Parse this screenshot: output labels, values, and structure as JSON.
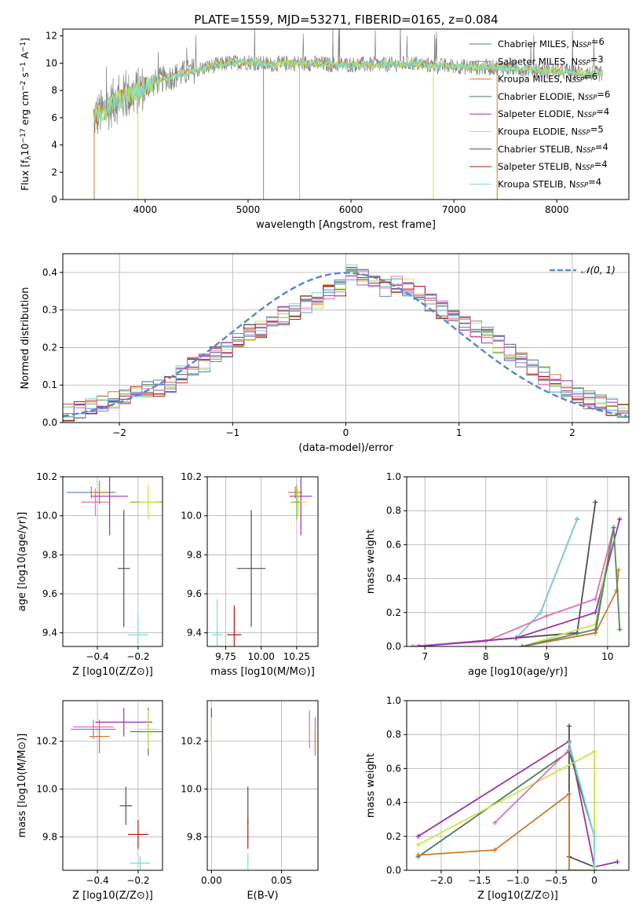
{
  "figure_title": "PLATE=1559, MJD=53271, FIBERID=0165, z=0.084",
  "colors": {
    "chabrier_miles": "#5a8a6a",
    "salpeter_miles": "#8a8a8a",
    "kroupa_miles": "#d07a30",
    "chabrier_elodie": "#4a7a5a",
    "salpeter_elodie": "#9b30b0",
    "kroupa_elodie": "#c8e84a",
    "chabrier_stelib": "#505050",
    "salpeter_stelib": "#b01818",
    "kroupa_stelib": "#7ad8d8",
    "blue": "#6a86d8",
    "pink": "#e070b8",
    "green_bright": "#70c030",
    "gaussian": "#5a8ad0"
  },
  "chart_data": [
    {
      "id": "spectrum",
      "type": "line",
      "title": "PLATE=1559, MJD=53271, FIBERID=0165, z=0.084",
      "xlabel": "wavelength [Angstrom, rest frame]",
      "ylabel": "Flux [f_λ10^-17 erg cm^-2 s^-1 A^-1]",
      "xlim": [
        3200,
        8700
      ],
      "ylim": [
        0,
        12.5
      ],
      "xticks": [
        4000,
        5000,
        6000,
        7000,
        8000
      ],
      "yticks": [
        0,
        2,
        4,
        6,
        8,
        10,
        12
      ],
      "legend_position": "top-right",
      "legend": [
        {
          "name": "Chabrier MILES",
          "n": "6",
          "color": "chabrier_miles"
        },
        {
          "name": "Salpeter MILES",
          "n": "3",
          "color": "salpeter_miles"
        },
        {
          "name": "Kroupa MILES",
          "n": "6",
          "color": "kroupa_miles"
        },
        {
          "name": "Chabrier ELODIE",
          "n": "6",
          "color": "chabrier_elodie"
        },
        {
          "name": "Salpeter ELODIE",
          "n": "4",
          "color": "salpeter_elodie"
        },
        {
          "name": "Kroupa ELODIE",
          "n": "5",
          "color": "kroupa_elodie"
        },
        {
          "name": "Chabrier STELIB",
          "n": "4",
          "color": "chabrier_stelib"
        },
        {
          "name": "Salpeter STELIB",
          "n": "4",
          "color": "salpeter_stelib"
        },
        {
          "name": "Kroupa STELIB",
          "n": "4",
          "color": "kroupa_stelib"
        }
      ],
      "continuum": [
        [
          3500,
          6.0
        ],
        [
          3600,
          6.5
        ],
        [
          3700,
          7.2
        ],
        [
          3800,
          7.5
        ],
        [
          3900,
          7.8
        ],
        [
          4000,
          8.3
        ],
        [
          4200,
          8.9
        ],
        [
          4400,
          9.3
        ],
        [
          4600,
          9.7
        ],
        [
          4800,
          10.0
        ],
        [
          5000,
          10.1
        ],
        [
          5200,
          9.9
        ],
        [
          5400,
          10.0
        ],
        [
          5600,
          10.0
        ],
        [
          5800,
          9.9
        ],
        [
          6000,
          9.9
        ],
        [
          6200,
          9.9
        ],
        [
          6400,
          9.9
        ],
        [
          6600,
          10.0
        ],
        [
          6800,
          9.8
        ],
        [
          7000,
          9.8
        ],
        [
          7200,
          9.7
        ],
        [
          7400,
          9.7
        ],
        [
          7600,
          9.6
        ],
        [
          7800,
          9.5
        ],
        [
          8000,
          9.4
        ],
        [
          8200,
          9.3
        ],
        [
          8450,
          9.2
        ]
      ]
    },
    {
      "id": "residuals",
      "type": "histogram",
      "xlabel": "(data-model)/error",
      "ylabel": "Normed distribution",
      "xlim": [
        -2.5,
        2.5
      ],
      "ylim": [
        0,
        0.45
      ],
      "xticks": [
        -2,
        -1,
        0,
        1,
        2
      ],
      "yticks": [
        0.0,
        0.1,
        0.2,
        0.3,
        0.4
      ],
      "legend": "N(0,1)",
      "legend_position": "top-right",
      "bins": [
        -2.5,
        -2.4,
        -2.3,
        -2.2,
        -2.1,
        -2.0,
        -1.9,
        -1.8,
        -1.7,
        -1.6,
        -1.5,
        -1.4,
        -1.3,
        -1.2,
        -1.1,
        -1.0,
        -0.9,
        -0.8,
        -0.7,
        -0.6,
        -0.5,
        -0.4,
        -0.3,
        -0.2,
        -0.1,
        0.0,
        0.1,
        0.2,
        0.3,
        0.4,
        0.5,
        0.6,
        0.7,
        0.8,
        0.9,
        1.0,
        1.1,
        1.2,
        1.3,
        1.4,
        1.5,
        1.6,
        1.7,
        1.8,
        1.9,
        2.0,
        2.1,
        2.2,
        2.3,
        2.4,
        2.5
      ],
      "hist_mean": [
        0.025,
        0.035,
        0.045,
        0.05,
        0.06,
        0.065,
        0.075,
        0.09,
        0.095,
        0.105,
        0.13,
        0.15,
        0.16,
        0.18,
        0.19,
        0.22,
        0.24,
        0.245,
        0.27,
        0.285,
        0.3,
        0.315,
        0.33,
        0.345,
        0.36,
        0.4,
        0.39,
        0.375,
        0.36,
        0.37,
        0.36,
        0.34,
        0.32,
        0.3,
        0.28,
        0.27,
        0.25,
        0.23,
        0.21,
        0.19,
        0.17,
        0.15,
        0.125,
        0.105,
        0.09,
        0.075,
        0.06,
        0.05,
        0.04,
        0.035
      ]
    },
    {
      "id": "age_vs_Z",
      "type": "scatter",
      "xlabel": "Z [log10(Z/Z⊙)]",
      "ylabel": "age  [log10(age/yr)]",
      "xlim": [
        -0.57,
        -0.08
      ],
      "ylim": [
        9.33,
        10.2
      ],
      "xticks": [
        -0.4,
        -0.2
      ],
      "yticks": [
        9.4,
        9.6,
        9.8,
        10.0,
        10.2
      ],
      "points": [
        {
          "x": -0.43,
          "y": 10.12,
          "xerr": 0.12,
          "yerr": 0.03,
          "color": "blue"
        },
        {
          "x": -0.39,
          "y": 10.12,
          "xerr": 0.05,
          "yerr": 0.06,
          "color": "kroupa_miles"
        },
        {
          "x": -0.41,
          "y": 10.07,
          "xerr": 0.07,
          "yerr": 0.07,
          "color": "pink"
        },
        {
          "x": -0.34,
          "y": 10.1,
          "xerr": 0.09,
          "yerr": 0.2,
          "color": "salpeter_elodie"
        },
        {
          "x": -0.15,
          "y": 10.07,
          "xerr": 0.09,
          "yerr": 0.02,
          "color": "green_bright"
        },
        {
          "x": -0.15,
          "y": 10.07,
          "xerr": 0.05,
          "yerr": 0.09,
          "color": "kroupa_elodie"
        },
        {
          "x": -0.27,
          "y": 9.73,
          "xerr": 0.03,
          "yerr": 0.3,
          "color": "chabrier_stelib"
        },
        {
          "x": -0.2,
          "y": 9.39,
          "xerr": 0.05,
          "yerr": 0.11,
          "color": "kroupa_stelib"
        }
      ]
    },
    {
      "id": "age_vs_mass",
      "type": "scatter",
      "xlabel": "mass [log10(M/M⊙)]",
      "ylabel": "",
      "xlim": [
        9.62,
        10.4
      ],
      "ylim": [
        9.33,
        10.2
      ],
      "xticks": [
        9.75,
        10.0,
        10.25
      ],
      "yticks": [
        9.4,
        9.6,
        9.8,
        10.0,
        10.2
      ],
      "points": [
        {
          "x": 10.24,
          "y": 10.12,
          "xerr": 0.05,
          "yerr": 0.03,
          "color": "kroupa_miles"
        },
        {
          "x": 10.28,
          "y": 10.1,
          "xerr": 0.08,
          "yerr": 0.2,
          "color": "salpeter_elodie"
        },
        {
          "x": 10.26,
          "y": 10.07,
          "xerr": 0.06,
          "yerr": 0.07,
          "color": "kroupa_elodie"
        },
        {
          "x": 10.25,
          "y": 10.07,
          "xerr": 0.03,
          "yerr": 0.09,
          "color": "green_bright"
        },
        {
          "x": 9.93,
          "y": 9.73,
          "xerr": 0.1,
          "yerr": 0.3,
          "color": "chabrier_stelib"
        },
        {
          "x": 9.81,
          "y": 9.39,
          "xerr": 0.05,
          "yerr": 0.15,
          "color": "salpeter_stelib"
        },
        {
          "x": 9.69,
          "y": 9.39,
          "xerr": 0.04,
          "yerr": 0.18,
          "color": "kroupa_stelib"
        }
      ]
    },
    {
      "id": "weight_vs_age",
      "type": "line",
      "xlabel": "age  [log10(age/yr)]",
      "ylabel": "mass weight",
      "xlim": [
        6.7,
        10.35
      ],
      "ylim": [
        0,
        1.0
      ],
      "xticks": [
        7,
        8,
        9,
        10
      ],
      "yticks": [
        0.0,
        0.2,
        0.4,
        0.6,
        0.8,
        1.0
      ],
      "series": [
        {
          "color": "chabrier_stelib",
          "points": [
            [
              6.8,
              0.0
            ],
            [
              8.5,
              0.05
            ],
            [
              9.5,
              0.08
            ],
            [
              9.8,
              0.85
            ]
          ]
        },
        {
          "color": "salpeter_stelib",
          "points": [
            [
              6.8,
              0.0
            ],
            [
              8.5,
              0.05
            ],
            [
              8.9,
              0.2
            ],
            [
              9.5,
              0.75
            ]
          ]
        },
        {
          "color": "kroupa_stelib",
          "points": [
            [
              6.8,
              0.0
            ],
            [
              8.5,
              0.05
            ],
            [
              8.9,
              0.2
            ],
            [
              9.5,
              0.75
            ]
          ]
        },
        {
          "color": "pink",
          "points": [
            [
              6.8,
              0.0
            ],
            [
              8.0,
              0.03
            ],
            [
              9.0,
              0.18
            ],
            [
              9.8,
              0.28
            ],
            [
              10.1,
              0.7
            ]
          ]
        },
        {
          "color": "salpeter_elodie",
          "points": [
            [
              6.9,
              0.0
            ],
            [
              8.5,
              0.05
            ],
            [
              9.8,
              0.2
            ],
            [
              10.2,
              0.75
            ]
          ]
        },
        {
          "color": "kroupa_elodie",
          "points": [
            [
              8.6,
              0.0
            ],
            [
              9.8,
              0.13
            ],
            [
              10.1,
              0.7
            ],
            [
              10.2,
              0.1
            ]
          ]
        },
        {
          "color": "chabrier_elodie",
          "points": [
            [
              8.6,
              0.0
            ],
            [
              9.8,
              0.08
            ],
            [
              10.1,
              0.7
            ]
          ]
        },
        {
          "color": "kroupa_miles",
          "points": [
            [
              8.6,
              0.0
            ],
            [
              9.8,
              0.08
            ],
            [
              10.15,
              0.33
            ],
            [
              10.18,
              0.45
            ]
          ]
        },
        {
          "color": "chabrier_miles",
          "points": [
            [
              8.6,
              0.0
            ],
            [
              9.8,
              0.1
            ],
            [
              10.1,
              0.7
            ],
            [
              10.2,
              0.1
            ]
          ]
        }
      ]
    },
    {
      "id": "mass_vs_Z",
      "type": "scatter",
      "xlabel": "Z [log10(Z/Z⊙)]",
      "ylabel": "mass [log10(M/M⊙)]",
      "xlim": [
        -0.57,
        -0.08
      ],
      "ylim": [
        9.66,
        10.37
      ],
      "xticks": [
        -0.4,
        -0.2
      ],
      "yticks": [
        9.8,
        10.0,
        10.2
      ],
      "points": [
        {
          "x": -0.42,
          "y": 10.25,
          "xerr": 0.11,
          "yerr": 0.04,
          "color": "blue"
        },
        {
          "x": -0.42,
          "y": 10.26,
          "xerr": 0.1,
          "yerr": 0.02,
          "color": "pink"
        },
        {
          "x": -0.39,
          "y": 10.22,
          "xerr": 0.05,
          "yerr": 0.07,
          "color": "kroupa_miles"
        },
        {
          "x": -0.27,
          "y": 10.28,
          "xerr": 0.14,
          "yerr": 0.06,
          "color": "salpeter_elodie"
        },
        {
          "x": -0.15,
          "y": 10.24,
          "xerr": 0.09,
          "yerr": 0.1,
          "color": "chabrier_elodie"
        },
        {
          "x": -0.15,
          "y": 10.25,
          "xerr": 0.05,
          "yerr": 0.08,
          "color": "kroupa_elodie"
        },
        {
          "x": -0.26,
          "y": 9.93,
          "xerr": 0.03,
          "yerr": 0.08,
          "color": "chabrier_stelib"
        },
        {
          "x": -0.2,
          "y": 9.81,
          "xerr": 0.05,
          "yerr": 0.06,
          "color": "salpeter_stelib"
        },
        {
          "x": -0.19,
          "y": 9.69,
          "xerr": 0.05,
          "yerr": 0.03,
          "color": "kroupa_stelib"
        }
      ]
    },
    {
      "id": "mass_vs_ebv",
      "type": "scatter",
      "xlabel": "E(B-V)",
      "ylabel": "",
      "xlim": [
        -0.003,
        0.076
      ],
      "ylim": [
        9.66,
        10.37
      ],
      "xticks": [
        0.0,
        0.05
      ],
      "yticks": [
        9.8,
        10.0,
        10.2
      ],
      "points": [
        {
          "x": 0.0,
          "y": 10.28,
          "xerr": 0,
          "yerr": 0.06,
          "color": "salpeter_elodie"
        },
        {
          "x": 0.0,
          "y": 10.22,
          "xerr": 0,
          "yerr": 0.08,
          "color": "kroupa_elodie"
        },
        {
          "x": 0.026,
          "y": 9.93,
          "xerr": 0,
          "yerr": 0.08,
          "color": "chabrier_stelib"
        },
        {
          "x": 0.026,
          "y": 9.81,
          "xerr": 0,
          "yerr": 0.06,
          "color": "salpeter_stelib"
        },
        {
          "x": 0.026,
          "y": 9.69,
          "xerr": 0,
          "yerr": 0.04,
          "color": "kroupa_stelib"
        },
        {
          "x": 0.07,
          "y": 10.25,
          "xerr": 0,
          "yerr": 0.08,
          "color": "pink"
        },
        {
          "x": 0.074,
          "y": 10.25,
          "xerr": 0,
          "yerr": 0.05,
          "color": "blue"
        },
        {
          "x": 0.074,
          "y": 10.2,
          "xerr": 0,
          "yerr": 0.06,
          "color": "kroupa_miles"
        }
      ]
    },
    {
      "id": "weight_vs_Z",
      "type": "line",
      "xlabel": "Z [log10(Z/Z⊙)]",
      "ylabel": "mass weight",
      "xlim": [
        -2.45,
        0.45
      ],
      "ylim": [
        0,
        1.0
      ],
      "xticks": [
        -2.0,
        -1.5,
        -1.0,
        -0.5,
        0.0
      ],
      "yticks": [
        0.0,
        0.2,
        0.4,
        0.6,
        0.8,
        1.0
      ],
      "series": [
        {
          "color": "chabrier_stelib",
          "points": [
            [
              -0.33,
              0.85
            ],
            [
              -0.33,
              0.08
            ],
            [
              0.0,
              0.02
            ]
          ]
        },
        {
          "color": "salpeter_elodie",
          "points": [
            [
              -2.3,
              0.2
            ],
            [
              -0.33,
              0.76
            ],
            [
              0.0,
              0.02
            ],
            [
              0.3,
              0.05
            ]
          ]
        },
        {
          "color": "chabrier_elodie",
          "points": [
            [
              -2.3,
              0.08
            ],
            [
              -0.33,
              0.7
            ],
            [
              0.0,
              0.2
            ],
            [
              0.0,
              0.0
            ]
          ]
        },
        {
          "color": "kroupa_elodie",
          "points": [
            [
              -2.3,
              0.15
            ],
            [
              0.0,
              0.7
            ],
            [
              0.0,
              0.02
            ]
          ]
        },
        {
          "color": "pink",
          "points": [
            [
              -1.3,
              0.28
            ],
            [
              -0.33,
              0.71
            ]
          ]
        },
        {
          "color": "kroupa_miles",
          "points": [
            [
              -2.3,
              0.09
            ],
            [
              -1.3,
              0.12
            ],
            [
              -0.33,
              0.45
            ],
            [
              -0.33,
              0.0
            ],
            [
              0.0,
              0.0
            ]
          ]
        },
        {
          "color": "kroupa_stelib",
          "points": [
            [
              -0.33,
              0.75
            ],
            [
              0.0,
              0.2
            ],
            [
              0.0,
              0.0
            ]
          ]
        }
      ]
    }
  ]
}
